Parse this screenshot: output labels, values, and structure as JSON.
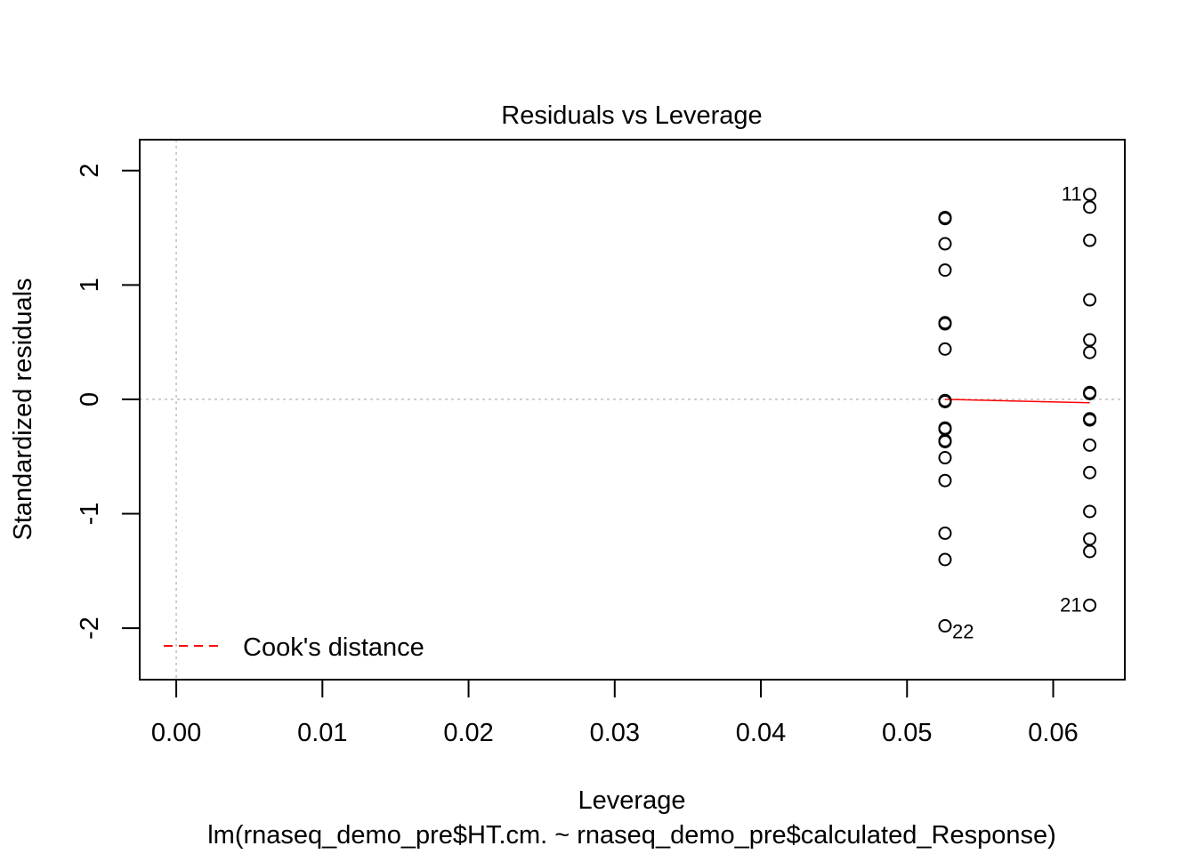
{
  "chart_data": {
    "type": "scatter",
    "title": "Residuals vs Leverage",
    "xlabel": "Leverage",
    "subtitle": "lm(rnaseq_demo_pre$HT.cm. ~ rnaseq_demo_pre$calculated_Response)",
    "ylabel": "Standardized residuals",
    "xlim": [
      -0.0025,
      0.0649
    ],
    "ylim": [
      -2.45,
      2.27
    ],
    "x_ticks": [
      0.0,
      0.01,
      0.02,
      0.03,
      0.04,
      0.05,
      0.06
    ],
    "x_tick_labels": [
      "0.00",
      "0.01",
      "0.02",
      "0.03",
      "0.04",
      "0.05",
      "0.06"
    ],
    "y_ticks": [
      -2,
      -1,
      0,
      1,
      2
    ],
    "y_tick_labels": [
      "-2",
      "-1",
      "0",
      "1",
      "2"
    ],
    "reference_lines": {
      "x": 0,
      "y": 0,
      "style": "dotted",
      "color": "#bebebe"
    },
    "points": [
      {
        "x": 0.0526,
        "y": 1.59
      },
      {
        "x": 0.0526,
        "y": 1.58
      },
      {
        "x": 0.0526,
        "y": 1.36
      },
      {
        "x": 0.0526,
        "y": 1.13
      },
      {
        "x": 0.0526,
        "y": 0.67
      },
      {
        "x": 0.0526,
        "y": 0.66
      },
      {
        "x": 0.0526,
        "y": 0.44
      },
      {
        "x": 0.0526,
        "y": -0.01
      },
      {
        "x": 0.0526,
        "y": -0.02
      },
      {
        "x": 0.0526,
        "y": -0.25
      },
      {
        "x": 0.0526,
        "y": -0.26
      },
      {
        "x": 0.0526,
        "y": -0.36
      },
      {
        "x": 0.0526,
        "y": -0.37
      },
      {
        "x": 0.0526,
        "y": -0.51
      },
      {
        "x": 0.0526,
        "y": -0.71
      },
      {
        "x": 0.0526,
        "y": -1.17
      },
      {
        "x": 0.0526,
        "y": -1.4
      },
      {
        "x": 0.0526,
        "y": -1.98,
        "label": "22"
      },
      {
        "x": 0.0625,
        "y": 1.79,
        "label": "11"
      },
      {
        "x": 0.0625,
        "y": 1.68
      },
      {
        "x": 0.0625,
        "y": 1.39
      },
      {
        "x": 0.0625,
        "y": 0.87
      },
      {
        "x": 0.0625,
        "y": 0.52
      },
      {
        "x": 0.0625,
        "y": 0.41
      },
      {
        "x": 0.0625,
        "y": 0.06
      },
      {
        "x": 0.0625,
        "y": 0.05
      },
      {
        "x": 0.0625,
        "y": -0.17
      },
      {
        "x": 0.0625,
        "y": -0.18
      },
      {
        "x": 0.0625,
        "y": -0.4
      },
      {
        "x": 0.0625,
        "y": -0.64
      },
      {
        "x": 0.0625,
        "y": -0.98
      },
      {
        "x": 0.0625,
        "y": -1.22
      },
      {
        "x": 0.0625,
        "y": -1.33
      },
      {
        "x": 0.0625,
        "y": -1.8,
        "label": "21"
      }
    ],
    "smoother": {
      "color": "#ff0000",
      "x": [
        0.0526,
        0.0625
      ],
      "y": [
        0.0,
        -0.03
      ]
    },
    "legend": {
      "position": "bottom-left",
      "entries": [
        {
          "label": "Cook's distance",
          "color": "#ff0000",
          "style": "dashed"
        }
      ]
    }
  }
}
